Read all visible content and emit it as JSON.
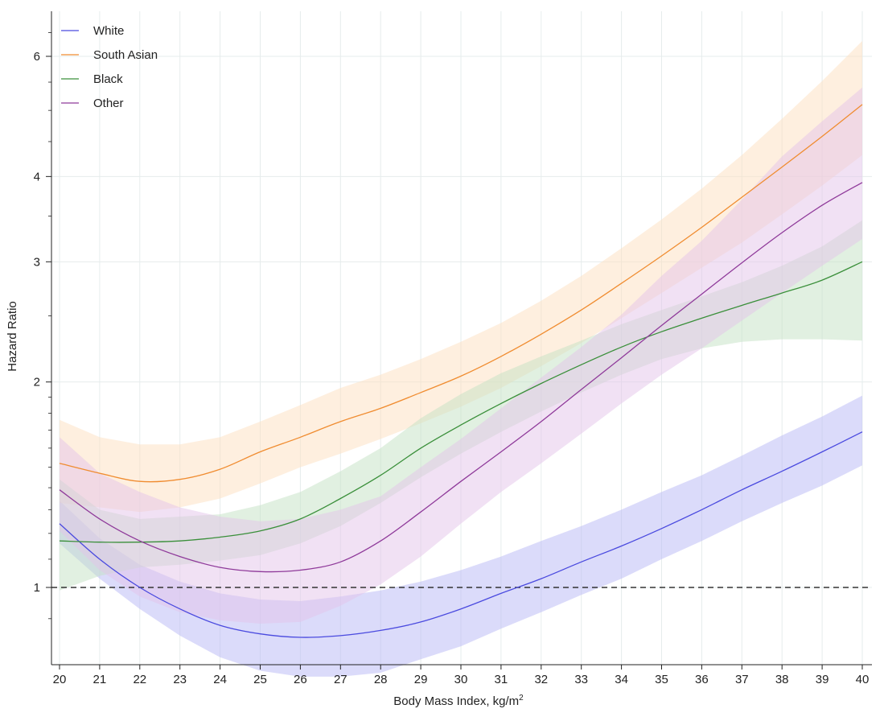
{
  "chart_data": {
    "type": "line",
    "xlabel": "Body Mass Index, kg/m",
    "xlabel_superscript": "2",
    "ylabel": "Hazard Ratio",
    "x_scale": "linear",
    "y_scale": "log",
    "xlim": [
      20,
      40
    ],
    "ylim": [
      0.85,
      6.7
    ],
    "x_ticks": [
      "20",
      "21",
      "22",
      "23",
      "24",
      "25",
      "26",
      "27",
      "28",
      "29",
      "30",
      "31",
      "32",
      "33",
      "34",
      "35",
      "36",
      "37",
      "38",
      "39",
      "40"
    ],
    "y_ticks": [
      "1",
      "2",
      "3",
      "4",
      "6"
    ],
    "reference_line": {
      "y": 1,
      "style": "dashed"
    },
    "grid": true,
    "legend_position": "top-left",
    "x": [
      20,
      21,
      22,
      23,
      24,
      25,
      26,
      27,
      28,
      29,
      30,
      31,
      32,
      33,
      34,
      35,
      36,
      37,
      38,
      39,
      40
    ],
    "series": [
      {
        "name": "White",
        "color": "#4a4adf",
        "band_color": "#b8b8f6",
        "values": [
          1.24,
          1.1,
          1.0,
          0.93,
          0.88,
          0.855,
          0.845,
          0.85,
          0.865,
          0.89,
          0.93,
          0.98,
          1.03,
          1.09,
          1.15,
          1.22,
          1.3,
          1.39,
          1.48,
          1.58,
          1.69
        ],
        "lower": [
          1.16,
          1.03,
          0.93,
          0.85,
          0.79,
          0.755,
          0.74,
          0.74,
          0.75,
          0.785,
          0.82,
          0.87,
          0.92,
          0.975,
          1.03,
          1.1,
          1.17,
          1.25,
          1.33,
          1.41,
          1.51
        ],
        "upper": [
          1.34,
          1.18,
          1.08,
          1.02,
          0.98,
          0.96,
          0.955,
          0.97,
          0.99,
          1.02,
          1.06,
          1.11,
          1.17,
          1.23,
          1.3,
          1.38,
          1.46,
          1.56,
          1.67,
          1.78,
          1.91
        ]
      },
      {
        "name": "South Asian",
        "color": "#f08c30",
        "band_color": "#fde0c0",
        "values": [
          1.52,
          1.47,
          1.43,
          1.44,
          1.49,
          1.58,
          1.66,
          1.75,
          1.83,
          1.93,
          2.04,
          2.18,
          2.35,
          2.55,
          2.79,
          3.06,
          3.37,
          3.73,
          4.13,
          4.58,
          5.1
        ],
        "lower": [
          1.33,
          1.31,
          1.29,
          1.31,
          1.35,
          1.42,
          1.5,
          1.57,
          1.65,
          1.74,
          1.84,
          1.96,
          2.11,
          2.28,
          2.48,
          2.7,
          2.94,
          3.2,
          3.52,
          3.88,
          4.3
        ],
        "upper": [
          1.76,
          1.66,
          1.62,
          1.62,
          1.66,
          1.75,
          1.85,
          1.96,
          2.05,
          2.16,
          2.29,
          2.44,
          2.63,
          2.86,
          3.14,
          3.46,
          3.84,
          4.3,
          4.86,
          5.52,
          6.32
        ]
      },
      {
        "name": "Black",
        "color": "#3a8f3a",
        "band_color": "#c4e2c4",
        "values": [
          1.17,
          1.165,
          1.165,
          1.17,
          1.185,
          1.21,
          1.26,
          1.35,
          1.46,
          1.6,
          1.73,
          1.86,
          1.99,
          2.12,
          2.25,
          2.37,
          2.48,
          2.59,
          2.7,
          2.82,
          3.0
        ],
        "lower": [
          0.99,
          1.04,
          1.07,
          1.08,
          1.095,
          1.115,
          1.16,
          1.23,
          1.33,
          1.45,
          1.57,
          1.69,
          1.81,
          1.93,
          2.05,
          2.16,
          2.24,
          2.29,
          2.31,
          2.31,
          2.3
        ],
        "upper": [
          1.44,
          1.3,
          1.26,
          1.27,
          1.28,
          1.32,
          1.38,
          1.48,
          1.6,
          1.77,
          1.92,
          2.06,
          2.18,
          2.3,
          2.43,
          2.55,
          2.67,
          2.8,
          2.96,
          3.16,
          3.45
        ]
      },
      {
        "name": "Other",
        "color": "#8f3a9a",
        "band_color": "#e4c4ea",
        "values": [
          1.39,
          1.26,
          1.17,
          1.11,
          1.07,
          1.055,
          1.06,
          1.09,
          1.17,
          1.29,
          1.43,
          1.58,
          1.75,
          1.95,
          2.17,
          2.42,
          2.69,
          2.99,
          3.31,
          3.63,
          3.92
        ],
        "lower": [
          1.21,
          1.06,
          0.97,
          0.92,
          0.895,
          0.885,
          0.89,
          0.94,
          1.01,
          1.11,
          1.24,
          1.38,
          1.52,
          1.68,
          1.86,
          2.05,
          2.24,
          2.46,
          2.7,
          2.96,
          3.24
        ],
        "upper": [
          1.66,
          1.47,
          1.38,
          1.31,
          1.27,
          1.25,
          1.26,
          1.3,
          1.36,
          1.5,
          1.65,
          1.83,
          2.03,
          2.25,
          2.51,
          2.86,
          3.22,
          3.7,
          4.28,
          4.82,
          5.4
        ]
      }
    ]
  }
}
